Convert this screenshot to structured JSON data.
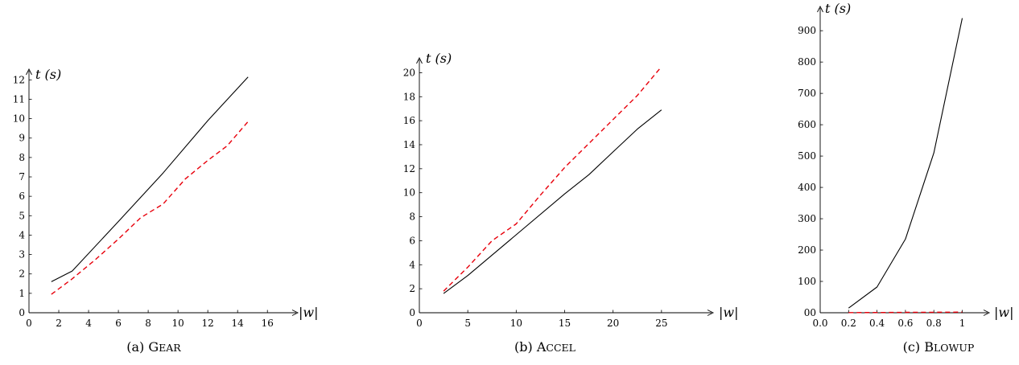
{
  "chart_data": [
    {
      "type": "line",
      "caption": {
        "prefix": "(a) ",
        "first": "G",
        "rest": "EAR"
      },
      "xlabel": "|w|",
      "ylabel": "t (s)",
      "xlim": [
        0,
        17.5
      ],
      "ylim": [
        0,
        12.8
      ],
      "xticks": [
        0,
        2,
        4,
        6,
        8,
        10,
        12,
        14,
        16
      ],
      "yticks": [
        0,
        1,
        2,
        3,
        4,
        5,
        6,
        7,
        8,
        9,
        10,
        11,
        12
      ],
      "xtick_labels": [
        "0",
        "2",
        "4",
        "6",
        "8",
        "10",
        "12",
        "14",
        "16"
      ],
      "ytick_labels": [
        "0",
        "1",
        "2",
        "3",
        "4",
        "5",
        "6",
        "7",
        "8",
        "9",
        "10",
        "11",
        "12"
      ],
      "grid": false,
      "series": [
        {
          "style": "solid",
          "color": "#000000",
          "x": [
            1.5,
            2.9,
            6,
            9,
            12,
            14.7
          ],
          "y": [
            1.6,
            2.15,
            4.7,
            7.2,
            9.9,
            12.15
          ]
        },
        {
          "style": "dashed",
          "color": "#e8000b",
          "x": [
            1.5,
            2.9,
            4.4,
            6,
            7.5,
            9,
            10.5,
            12,
            13.3,
            14.7
          ],
          "y": [
            0.95,
            1.75,
            2.7,
            3.8,
            4.9,
            5.6,
            6.9,
            7.85,
            8.6,
            9.85
          ]
        }
      ]
    },
    {
      "type": "line",
      "caption": {
        "prefix": "(b) ",
        "first": "A",
        "rest": "CCEL"
      },
      "xlabel": "|w|",
      "ylabel": "t (s)",
      "xlim": [
        0,
        29.5
      ],
      "ylim": [
        0,
        21.3
      ],
      "xticks": [
        0,
        5,
        10,
        15,
        20,
        25
      ],
      "yticks": [
        0,
        2,
        4,
        6,
        8,
        10,
        12,
        14,
        16,
        18,
        20
      ],
      "xtick_labels": [
        "0",
        "5",
        "10",
        "15",
        "20",
        "25"
      ],
      "ytick_labels": [
        "0",
        "2",
        "4",
        "6",
        "8",
        "10",
        "12",
        "14",
        "16",
        "18",
        "20"
      ],
      "grid": false,
      "series": [
        {
          "style": "solid",
          "color": "#000000",
          "x": [
            2.5,
            5,
            10,
            15,
            17.5,
            20,
            22.5,
            25
          ],
          "y": [
            1.6,
            3.1,
            6.5,
            9.9,
            11.5,
            13.4,
            15.3,
            16.9
          ]
        },
        {
          "style": "dashed",
          "color": "#e8000b",
          "x": [
            2.5,
            5,
            7.5,
            10,
            12.5,
            15,
            17.5,
            20,
            22.5,
            25
          ],
          "y": [
            1.8,
            3.8,
            6,
            7.4,
            9.8,
            12.1,
            14.1,
            16.1,
            18.1,
            20.5
          ]
        }
      ]
    },
    {
      "type": "line",
      "caption": {
        "prefix": "(c) ",
        "first": "B",
        "rest": "LOWUP"
      },
      "xlabel": "|w|",
      "ylabel": "t (s)",
      "xlim": [
        0,
        1.15
      ],
      "ylim": [
        0,
        980
      ],
      "xticks": [
        0,
        0.2,
        0.4,
        0.6,
        0.8,
        1
      ],
      "yticks": [
        0,
        100,
        200,
        300,
        400,
        500,
        600,
        700,
        800,
        900
      ],
      "xtick_labels": [
        "0.0",
        "0.2",
        "0.4",
        "0.6",
        "0.8",
        "1"
      ],
      "ytick_labels": [
        "00",
        "100",
        "200",
        "300",
        "400",
        "500",
        "600",
        "700",
        "800",
        "900"
      ],
      "grid": false,
      "series": [
        {
          "style": "solid",
          "color": "#000000",
          "x": [
            0.2,
            0.4,
            0.6,
            0.8,
            1
          ],
          "y": [
            15,
            82,
            235,
            510,
            940
          ]
        },
        {
          "style": "dashed",
          "color": "#e8000b",
          "x": [
            0.2,
            0.4,
            0.6,
            0.8,
            1
          ],
          "y": [
            0.5,
            0.8,
            1.2,
            1.6,
            2
          ]
        }
      ]
    }
  ]
}
